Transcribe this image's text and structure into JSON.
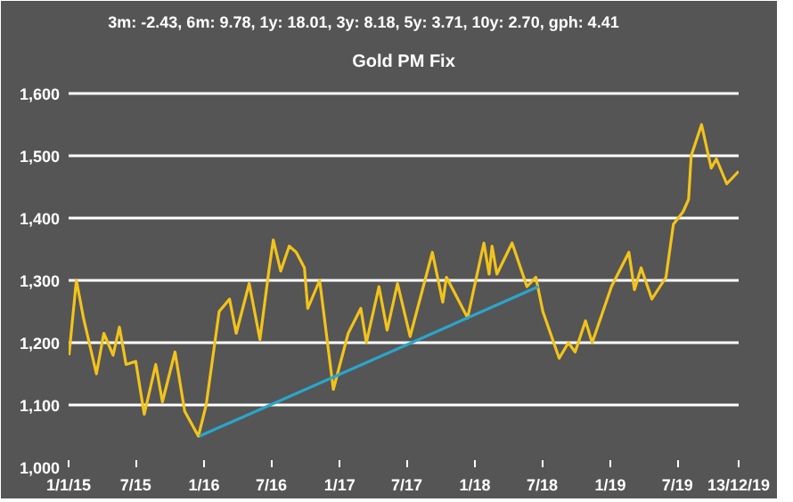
{
  "chart_data": {
    "type": "line",
    "title": "Gold PM Fix",
    "annotations": [
      "3m: -2.43,    6m: 9.78,    1y: 18.01,    3y: 8.18,    5y: 3.71,    10y: 2.70,    gph: 4.41"
    ],
    "x": [
      "2015-01-02",
      "2015-01-22",
      "2015-02-10",
      "2015-03-17",
      "2015-04-06",
      "2015-05-01",
      "2015-05-18",
      "2015-06-05",
      "2015-07-01",
      "2015-07-24",
      "2015-08-24",
      "2015-09-11",
      "2015-10-15",
      "2015-11-10",
      "2015-12-17",
      "2016-01-07",
      "2016-02-11",
      "2016-03-10",
      "2016-03-28",
      "2016-05-02",
      "2016-05-31",
      "2016-06-24",
      "2016-07-06",
      "2016-07-26",
      "2016-08-18",
      "2016-09-06",
      "2016-09-28",
      "2016-10-07",
      "2016-11-08",
      "2016-12-15",
      "2017-01-24",
      "2017-02-27",
      "2017-03-14",
      "2017-04-17",
      "2017-05-09",
      "2017-06-06",
      "2017-07-10",
      "2017-09-08",
      "2017-10-06",
      "2017-10-16",
      "2017-12-12",
      "2018-01-25",
      "2018-02-08",
      "2018-02-16",
      "2018-03-01",
      "2018-04-11",
      "2018-05-21",
      "2018-06-14",
      "2018-07-03",
      "2018-08-16",
      "2018-09-10",
      "2018-09-28",
      "2018-10-26",
      "2018-11-13",
      "2019-01-04",
      "2019-02-20",
      "2019-03-07",
      "2019-03-25",
      "2019-04-23",
      "2019-05-31",
      "2019-06-20",
      "2019-07-16",
      "2019-07-31",
      "2019-08-07",
      "2019-09-04",
      "2019-09-30",
      "2019-10-14",
      "2019-11-11",
      "2019-12-13"
    ],
    "series": [
      {
        "color": "#f2c31b",
        "values": [
          1180,
          1300,
          1240,
          1150,
          1215,
          1180,
          1225,
          1165,
          1170,
          1085,
          1165,
          1105,
          1185,
          1090,
          1050,
          1100,
          1250,
          1270,
          1215,
          1295,
          1205,
          1315,
          1365,
          1315,
          1355,
          1345,
          1320,
          1255,
          1300,
          1125,
          1215,
          1255,
          1200,
          1290,
          1220,
          1295,
          1210,
          1345,
          1265,
          1305,
          1240,
          1360,
          1310,
          1355,
          1310,
          1360,
          1290,
          1305,
          1250,
          1175,
          1200,
          1185,
          1235,
          1200,
          1290,
          1345,
          1285,
          1320,
          1270,
          1305,
          1390,
          1410,
          1430,
          1500,
          1550,
          1480,
          1495,
          1455,
          1475
        ]
      },
      {
        "type": "line",
        "color": "#2aa6cc",
        "x": [
          "2015-12-20",
          "2018-06-21"
        ],
        "values": [
          1050,
          1290
        ]
      }
    ],
    "xlim": [
      "2015-01-01",
      "2019-12-13"
    ],
    "xticks": [
      {
        "value": "2015-01-01",
        "label": "1/1/15"
      },
      {
        "value": "2015-07-01",
        "label": "7/15"
      },
      {
        "value": "2016-01-01",
        "label": "1/16"
      },
      {
        "value": "2016-07-01",
        "label": "7/16"
      },
      {
        "value": "2017-01-01",
        "label": "1/17"
      },
      {
        "value": "2017-07-01",
        "label": "7/17"
      },
      {
        "value": "2018-01-01",
        "label": "1/18"
      },
      {
        "value": "2018-07-01",
        "label": "7/18"
      },
      {
        "value": "2019-01-01",
        "label": "1/19"
      },
      {
        "value": "2019-07-01",
        "label": "7/19"
      },
      {
        "value": "2019-12-13",
        "label": "13/12/19"
      }
    ],
    "ylim": [
      1000,
      1620
    ],
    "yticks": [
      {
        "value": 1000,
        "label": "1,000"
      },
      {
        "value": 1100,
        "label": "1,100"
      },
      {
        "value": 1200,
        "label": "1,200"
      },
      {
        "value": 1300,
        "label": "1,300"
      },
      {
        "value": 1400,
        "label": "1,400"
      },
      {
        "value": 1500,
        "label": "1,500"
      },
      {
        "value": 1600,
        "label": "1,600"
      }
    ],
    "grid": "y",
    "marker": "none",
    "line_style": "solid"
  }
}
